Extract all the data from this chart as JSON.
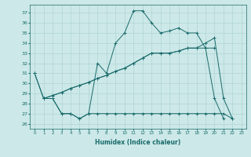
{
  "xlabel": "Humidex (Indice chaleur)",
  "bg_color": "#cce8e8",
  "grid_color": "#aad0d0",
  "line_color": "#1a6b6b",
  "xlim": [
    -0.5,
    23.5
  ],
  "ylim": [
    25.5,
    37.8
  ],
  "yticks": [
    26,
    27,
    28,
    29,
    30,
    31,
    32,
    33,
    34,
    35,
    36,
    37
  ],
  "xticks": [
    0,
    1,
    2,
    3,
    4,
    5,
    6,
    7,
    8,
    9,
    10,
    11,
    12,
    13,
    14,
    15,
    16,
    17,
    18,
    19,
    20,
    21,
    22,
    23
  ],
  "series": [
    {
      "x": [
        0,
        1,
        2,
        3,
        4,
        5,
        6,
        7,
        8,
        9,
        10,
        11,
        12,
        13,
        14,
        15,
        16,
        17,
        18,
        19,
        20,
        21
      ],
      "y": [
        31,
        28.5,
        28.5,
        27,
        27,
        26.5,
        27,
        32,
        31,
        34,
        35,
        37.2,
        37.2,
        36,
        35,
        35.2,
        35.5,
        35,
        35,
        33.5,
        28.5,
        26.5
      ]
    },
    {
      "x": [
        0,
        1,
        2,
        3,
        4,
        5,
        6,
        7,
        8,
        9,
        10,
        11,
        12,
        13,
        14,
        15,
        16,
        17,
        18,
        19,
        20,
        21,
        22
      ],
      "y": [
        31,
        28.5,
        28.5,
        27,
        27,
        26.5,
        27,
        27,
        27,
        27,
        27,
        27,
        27,
        27,
        27,
        27,
        27,
        27,
        27,
        27,
        27,
        27,
        26.5
      ]
    },
    {
      "x": [
        1,
        2,
        3,
        4,
        5,
        6,
        7,
        8,
        9,
        10,
        11,
        12,
        13,
        14,
        15,
        16,
        17,
        18,
        19,
        20
      ],
      "y": [
        28.5,
        28.8,
        29.1,
        29.5,
        29.8,
        30.1,
        30.5,
        30.8,
        31.2,
        31.5,
        32,
        32.5,
        33,
        33,
        33,
        33.2,
        33.5,
        33.5,
        33.5,
        33.5
      ]
    },
    {
      "x": [
        1,
        2,
        3,
        4,
        5,
        6,
        7,
        8,
        9,
        10,
        11,
        12,
        13,
        14,
        15,
        16,
        17,
        18,
        19,
        20,
        21,
        22
      ],
      "y": [
        28.5,
        28.8,
        29.1,
        29.5,
        29.8,
        30.1,
        30.5,
        30.8,
        31.2,
        31.5,
        32,
        32.5,
        33,
        33,
        33,
        33.2,
        33.5,
        33.5,
        34,
        34.5,
        28.5,
        26.5
      ]
    }
  ]
}
